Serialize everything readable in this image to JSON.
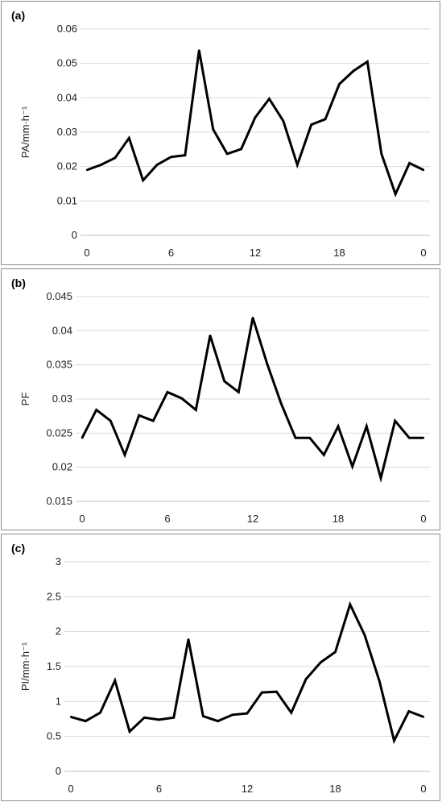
{
  "chart_data": [
    {
      "type": "line",
      "panel_label": "(a)",
      "ylabel": "PA/mm·h⁻¹",
      "ylim": [
        0,
        0.06
      ],
      "y_ticks": [
        "0",
        "0.01",
        "0.02",
        "0.03",
        "0.04",
        "0.05",
        "0.06"
      ],
      "x_tick_labels": [
        "0",
        "6",
        "12",
        "18",
        "0"
      ],
      "grid": true,
      "x": [
        0,
        1,
        2,
        3,
        4,
        5,
        6,
        7,
        8,
        9,
        10,
        11,
        12,
        13,
        14,
        15,
        16,
        17,
        18,
        19,
        20,
        21,
        22,
        23,
        24
      ],
      "values": [
        0.019,
        0.0205,
        0.0225,
        0.0283,
        0.016,
        0.0205,
        0.0228,
        0.0233,
        0.0538,
        0.0308,
        0.0237,
        0.0251,
        0.0343,
        0.0397,
        0.0333,
        0.0205,
        0.0322,
        0.0338,
        0.044,
        0.0478,
        0.0505,
        0.0237,
        0.012,
        0.021,
        0.019
      ]
    },
    {
      "type": "line",
      "panel_label": "(b)",
      "ylabel": "PF",
      "ylim": [
        0.015,
        0.045
      ],
      "y_ticks": [
        "0.015",
        "0.02",
        "0.025",
        "0.03",
        "0.035",
        "0.04",
        "0.045"
      ],
      "x_tick_labels": [
        "0",
        "6",
        "12",
        "18",
        "0"
      ],
      "grid": true,
      "x": [
        0,
        1,
        2,
        3,
        4,
        5,
        6,
        7,
        8,
        9,
        10,
        11,
        12,
        13,
        14,
        15,
        16,
        17,
        18,
        19,
        20,
        21,
        22,
        23,
        24
      ],
      "values": [
        0.0243,
        0.0284,
        0.0268,
        0.0218,
        0.0276,
        0.0268,
        0.031,
        0.0301,
        0.0284,
        0.0393,
        0.0326,
        0.031,
        0.0419,
        0.0352,
        0.0293,
        0.0243,
        0.0243,
        0.0218,
        0.026,
        0.0201,
        0.026,
        0.0184,
        0.0268,
        0.0243,
        0.0243
      ]
    },
    {
      "type": "line",
      "panel_label": "(c)",
      "ylabel": "PI/mm·h⁻¹",
      "ylim": [
        0,
        3
      ],
      "y_ticks": [
        "0",
        "0.5",
        "1",
        "1.5",
        "2",
        "2.5",
        "3"
      ],
      "x_tick_labels": [
        "0",
        "6",
        "12",
        "18",
        "0"
      ],
      "grid": true,
      "x": [
        0,
        1,
        2,
        3,
        4,
        5,
        6,
        7,
        8,
        9,
        10,
        11,
        12,
        13,
        14,
        15,
        16,
        17,
        18,
        19,
        20,
        21,
        22,
        23,
        24
      ],
      "values": [
        0.78,
        0.72,
        0.84,
        1.3,
        0.57,
        0.77,
        0.74,
        0.77,
        1.89,
        0.79,
        0.72,
        0.81,
        0.83,
        1.13,
        1.14,
        0.84,
        1.32,
        1.56,
        1.71,
        2.39,
        1.95,
        1.29,
        0.44,
        0.86,
        0.78
      ]
    }
  ]
}
